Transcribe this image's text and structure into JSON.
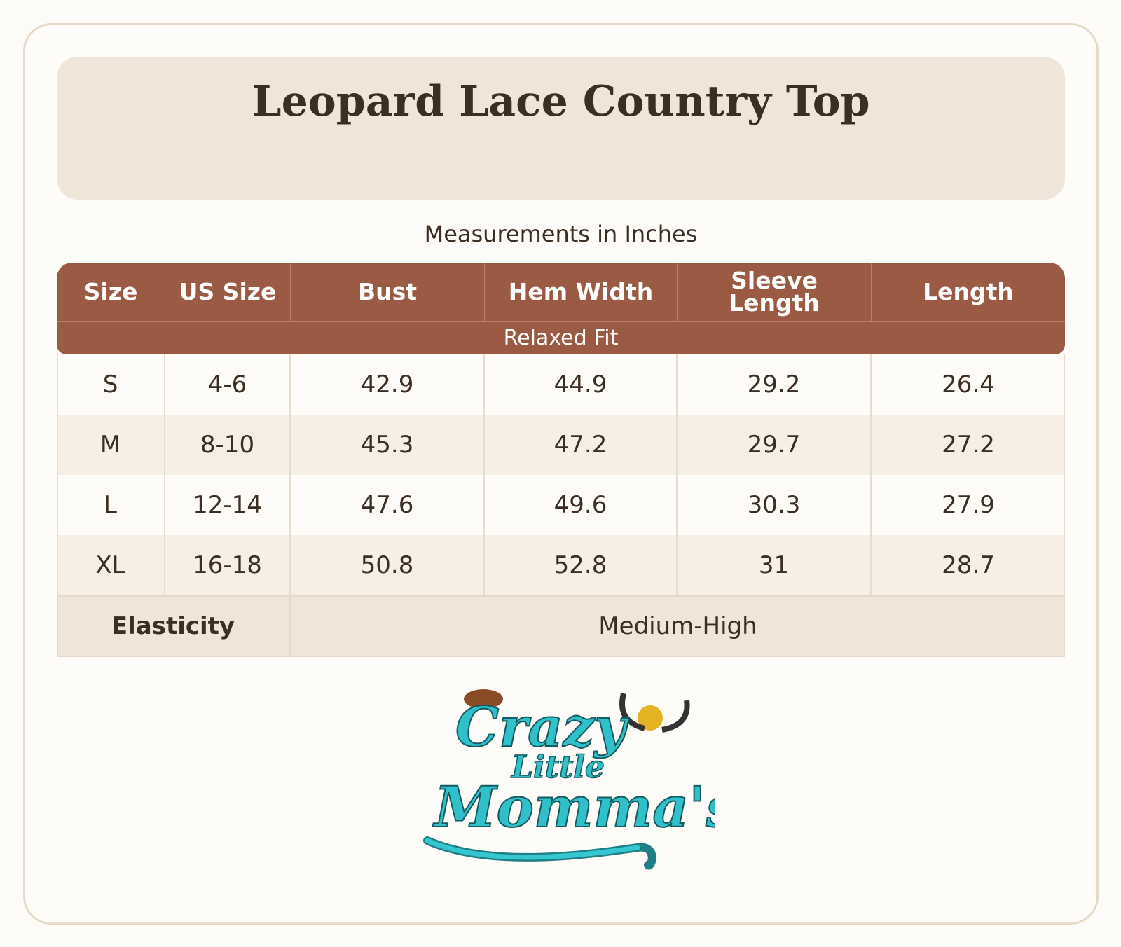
{
  "header": {
    "title": "Leopard Lace Country Top"
  },
  "subtitle": "Measurements in Inches",
  "table": {
    "columns": [
      "Size",
      "US Size",
      "Bust",
      "Hem Width",
      "Sleeve Length",
      "Length"
    ],
    "fit": "Relaxed Fit",
    "rows": [
      [
        "S",
        "4-6",
        42.9,
        44.9,
        29.2,
        26.4
      ],
      [
        "M",
        "8-10",
        45.3,
        47.2,
        29.7,
        27.2
      ],
      [
        "L",
        "12-14",
        47.6,
        49.6,
        30.3,
        27.9
      ],
      [
        "XL",
        "16-18",
        50.8,
        52.8,
        31,
        28.7
      ]
    ],
    "footer": {
      "label": "Elasticity",
      "value": "Medium-High"
    }
  },
  "logo": {
    "line1": "Crazy",
    "line2": "Little",
    "line3": "Momma's"
  }
}
